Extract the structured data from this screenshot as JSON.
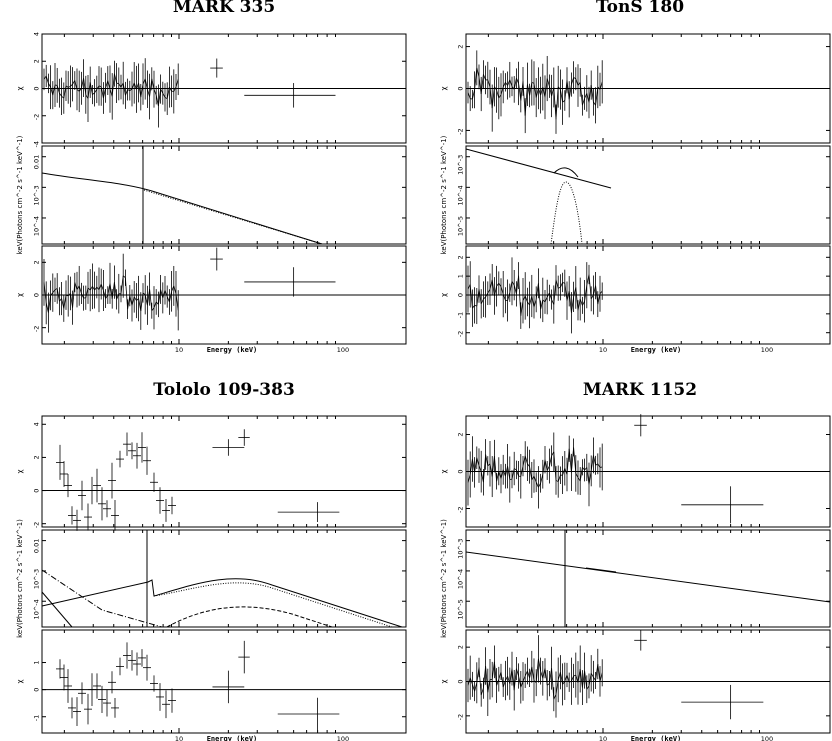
{
  "chart_data": [
    {
      "type": "scatter",
      "title": "MARK 335",
      "xlabel": "Energy (keV)",
      "x_ticks": [
        "10",
        "100"
      ],
      "panels": [
        {
          "role": "residuals",
          "ylabel": "χ",
          "ylim": [
            -4,
            4
          ],
          "y_ticks": [
            "4",
            "2",
            "0",
            "-2",
            "-4"
          ],
          "points": [
            {
              "x": 17,
              "y": 1.5,
              "xerr": [
                15.5,
                18.5
              ],
              "yerr": 0.7
            },
            {
              "x": 50,
              "y": -0.5,
              "xerr": [
                25,
                90
              ],
              "yerr": 0.9
            }
          ]
        },
        {
          "role": "model",
          "ylabel": "keV(Photons cm^-2 s^-1 keV^-1)",
          "yscale": "log",
          "y_ticks": [
            "0.01",
            "10^-3",
            "10^-4"
          ]
        },
        {
          "role": "residuals",
          "ylabel": "χ",
          "ylim": [
            -3,
            3
          ],
          "y_ticks": [
            "2",
            "0",
            "-2"
          ],
          "points": [
            {
              "x": 17,
              "y": 2.2,
              "xerr": [
                15.5,
                18.5
              ],
              "yerr": 0.7
            },
            {
              "x": 50,
              "y": 0.8,
              "xerr": [
                25,
                90
              ],
              "yerr": 0.9
            }
          ]
        }
      ]
    },
    {
      "type": "scatter",
      "title": "TonS 180",
      "xlabel": "Energy (keV)",
      "x_ticks": [
        "10",
        "100"
      ],
      "panels": [
        {
          "role": "residuals",
          "ylabel": "χ",
          "ylim": [
            -2.6,
            2.6
          ],
          "y_ticks": [
            "2",
            "0",
            "-2"
          ],
          "points": []
        },
        {
          "role": "model",
          "ylabel": "keV(Photons cm^-2 s^-1 keV^-1)",
          "yscale": "log",
          "y_ticks": [
            "10^-3",
            "10^-4",
            "10^-5"
          ]
        },
        {
          "role": "residuals",
          "ylabel": "χ",
          "ylim": [
            -2.6,
            2.6
          ],
          "y_ticks": [
            "2",
            "1",
            "0",
            "-1",
            "-2"
          ],
          "points": []
        }
      ]
    },
    {
      "type": "scatter",
      "title": "Tololo 109-383",
      "xlabel": "Energy (keV)",
      "x_ticks": [
        "10",
        "100"
      ],
      "panels": [
        {
          "role": "residuals",
          "ylabel": "χ",
          "ylim": [
            -2.2,
            4.5
          ],
          "y_ticks": [
            "4",
            "2",
            "0",
            "-2"
          ],
          "points": [
            {
              "x": 20,
              "y": 2.6,
              "xerr": [
                16,
                25
              ],
              "yerr": 0.5
            },
            {
              "x": 25,
              "y": 3.2,
              "xerr": [
                23,
                27
              ],
              "yerr": 0.5
            },
            {
              "x": 70,
              "y": -1.3,
              "xerr": [
                40,
                95
              ],
              "yerr": 0.6
            }
          ]
        },
        {
          "role": "model",
          "ylabel": "keV(Photons cm^-2 s^-1 keV^-1)",
          "yscale": "log",
          "y_ticks": [
            "0.01",
            "10^-3",
            "10^-4"
          ]
        },
        {
          "role": "residuals",
          "ylabel": "χ",
          "ylim": [
            -1.6,
            2.2
          ],
          "y_ticks": [
            "1",
            "0",
            "-1"
          ],
          "points": [
            {
              "x": 20,
              "y": 0.1,
              "xerr": [
                16,
                25
              ],
              "yerr": 0.6
            },
            {
              "x": 25,
              "y": 1.2,
              "xerr": [
                23,
                27
              ],
              "yerr": 0.6
            },
            {
              "x": 70,
              "y": -0.9,
              "xerr": [
                40,
                95
              ],
              "yerr": 0.6
            }
          ]
        }
      ]
    },
    {
      "type": "scatter",
      "title": "MARK 1152",
      "xlabel": "Energy (keV)",
      "x_ticks": [
        "10",
        "100"
      ],
      "panels": [
        {
          "role": "residuals",
          "ylabel": "χ",
          "ylim": [
            -3,
            3
          ],
          "y_ticks": [
            "2",
            "0",
            "-2"
          ],
          "points": [
            {
              "x": 17,
              "y": 2.5,
              "xerr": [
                15.5,
                18.5
              ],
              "yerr": 0.6
            },
            {
              "x": 60,
              "y": -1.8,
              "xerr": [
                30,
                95
              ],
              "yerr": 1.0
            }
          ]
        },
        {
          "role": "model",
          "ylabel": "keV(Photons cm^-2 s^-1 keV^-1)",
          "yscale": "log",
          "y_ticks": [
            "10^-3",
            "10^-4",
            "10^-5"
          ]
        },
        {
          "role": "residuals",
          "ylabel": "χ",
          "ylim": [
            -3,
            3
          ],
          "y_ticks": [
            "2",
            "0",
            "-2"
          ],
          "points": [
            {
              "x": 17,
              "y": 2.4,
              "xerr": [
                15.5,
                18.5
              ],
              "yerr": 0.6
            },
            {
              "x": 60,
              "y": -1.2,
              "xerr": [
                30,
                95
              ],
              "yerr": 1.0
            }
          ]
        }
      ]
    }
  ]
}
